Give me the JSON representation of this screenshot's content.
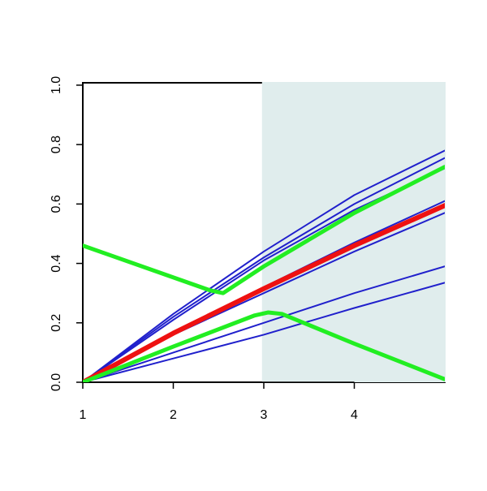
{
  "chart_data": {
    "type": "line",
    "xlim": [
      1,
      5
    ],
    "ylim": [
      0,
      1.008
    ],
    "xticks": [
      1,
      2,
      3,
      4
    ],
    "yticks": [
      {
        "value": 0,
        "label": "0.0"
      },
      {
        "value": 0.2,
        "label": "0.2"
      },
      {
        "value": 0.4,
        "label": "0.4"
      },
      {
        "value": 0.6,
        "label": "0.6"
      },
      {
        "value": 0.8,
        "label": "0.8"
      },
      {
        "value": 1,
        "label": "1.0"
      }
    ],
    "shaded_xrange": [
      2.98,
      5
    ],
    "shade_color": "#e0eded",
    "series": [
      {
        "color": "#2020cc",
        "width": 2,
        "x": [
          1,
          2,
          3,
          4,
          5
        ],
        "values": [
          0,
          0.23,
          0.44,
          0.63,
          0.78
        ]
      },
      {
        "color": "#2020cc",
        "width": 2,
        "x": [
          1,
          2,
          3,
          4,
          5
        ],
        "values": [
          0,
          0.22,
          0.42,
          0.6,
          0.755
        ]
      },
      {
        "color": "#2020cc",
        "width": 2,
        "x": [
          1,
          2,
          3,
          4,
          5
        ],
        "values": [
          0,
          0.21,
          0.41,
          0.58,
          0.72
        ]
      },
      {
        "color": "#2020cc",
        "width": 2,
        "x": [
          1,
          2,
          3,
          4,
          5
        ],
        "values": [
          0,
          0.17,
          0.32,
          0.47,
          0.61
        ]
      },
      {
        "color": "#2020cc",
        "width": 2,
        "x": [
          1,
          2,
          3,
          4,
          5
        ],
        "values": [
          0,
          0.16,
          0.3,
          0.44,
          0.57
        ]
      },
      {
        "color": "#2020cc",
        "width": 2,
        "x": [
          1,
          2,
          3,
          4,
          5
        ],
        "values": [
          0,
          0.1,
          0.2,
          0.3,
          0.39
        ]
      },
      {
        "color": "#2020cc",
        "width": 2,
        "x": [
          1,
          2,
          3,
          4,
          5
        ],
        "values": [
          0,
          0.08,
          0.16,
          0.25,
          0.335
        ]
      },
      {
        "color": "#ee1111",
        "width": 6,
        "x": [
          1,
          2,
          3,
          4,
          5
        ],
        "values": [
          0,
          0.165,
          0.315,
          0.46,
          0.595
        ]
      },
      {
        "color": "#22ee22",
        "width": 5,
        "x": [
          1,
          2.4,
          2.55,
          3,
          4,
          5
        ],
        "values": [
          0.46,
          0.31,
          0.3,
          0.39,
          0.57,
          0.725
        ]
      },
      {
        "color": "#22ee22",
        "width": 5,
        "x": [
          1,
          2,
          2.9,
          3.05,
          3.2,
          4,
          5
        ],
        "values": [
          0,
          0.12,
          0.225,
          0.235,
          0.23,
          0.13,
          0.01
        ]
      }
    ]
  }
}
